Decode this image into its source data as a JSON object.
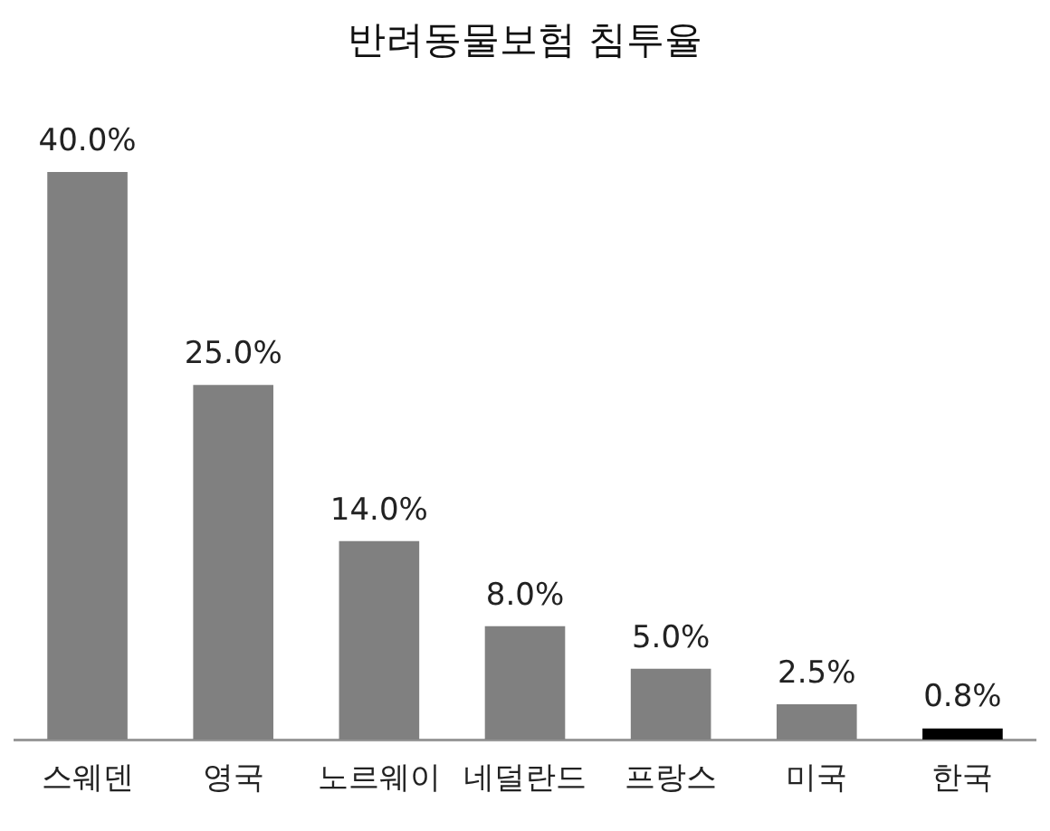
{
  "chart_data": {
    "type": "bar",
    "title": "반려동물보험 침투율",
    "categories": [
      "스웨덴",
      "영국",
      "노르웨이",
      "네덜란드",
      "프랑스",
      "미국",
      "한국"
    ],
    "values": [
      40,
      25,
      14,
      8,
      5,
      2.5,
      0.8
    ],
    "colors": [
      "#808080",
      "#808080",
      "#808080",
      "#808080",
      "#808080",
      "#808080",
      "#000000"
    ],
    "value_labels": [
      "40.0%",
      "25.0%",
      "14.0%",
      "8.0%",
      "5.0%",
      "2.5%",
      "0.8%"
    ],
    "grid": false,
    "legend": false
  }
}
